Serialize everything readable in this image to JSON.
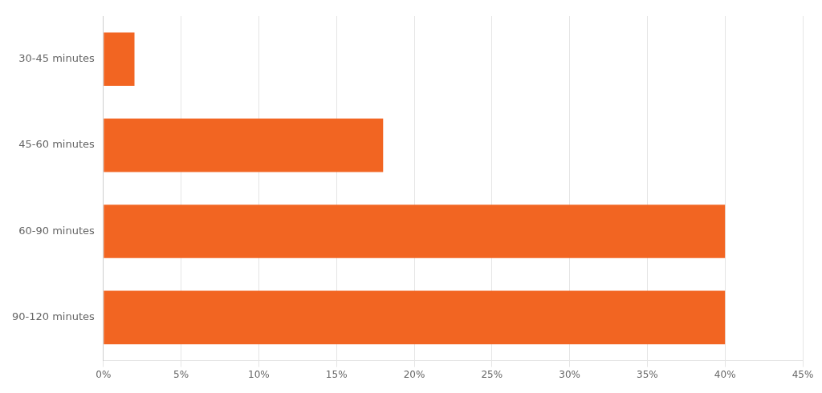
{
  "chart_data": {
    "type": "bar",
    "orientation": "horizontal",
    "categories": [
      "30-45 minutes",
      "45-60 minutes",
      "60-90 minutes",
      "90-120 minutes"
    ],
    "values": [
      2,
      18,
      40,
      40
    ],
    "color": "#F26522",
    "xlim": [
      0,
      45
    ],
    "xticks": [
      {
        "value": 0,
        "label": "0%"
      },
      {
        "value": 5,
        "label": "5%"
      },
      {
        "value": 10,
        "label": "10%"
      },
      {
        "value": 15,
        "label": "15%"
      },
      {
        "value": 20,
        "label": "20%"
      },
      {
        "value": 25,
        "label": "25%"
      },
      {
        "value": 30,
        "label": "30%"
      },
      {
        "value": 35,
        "label": "35%"
      },
      {
        "value": 40,
        "label": "40%"
      },
      {
        "value": 45,
        "label": "45%"
      }
    ],
    "grid": true
  }
}
